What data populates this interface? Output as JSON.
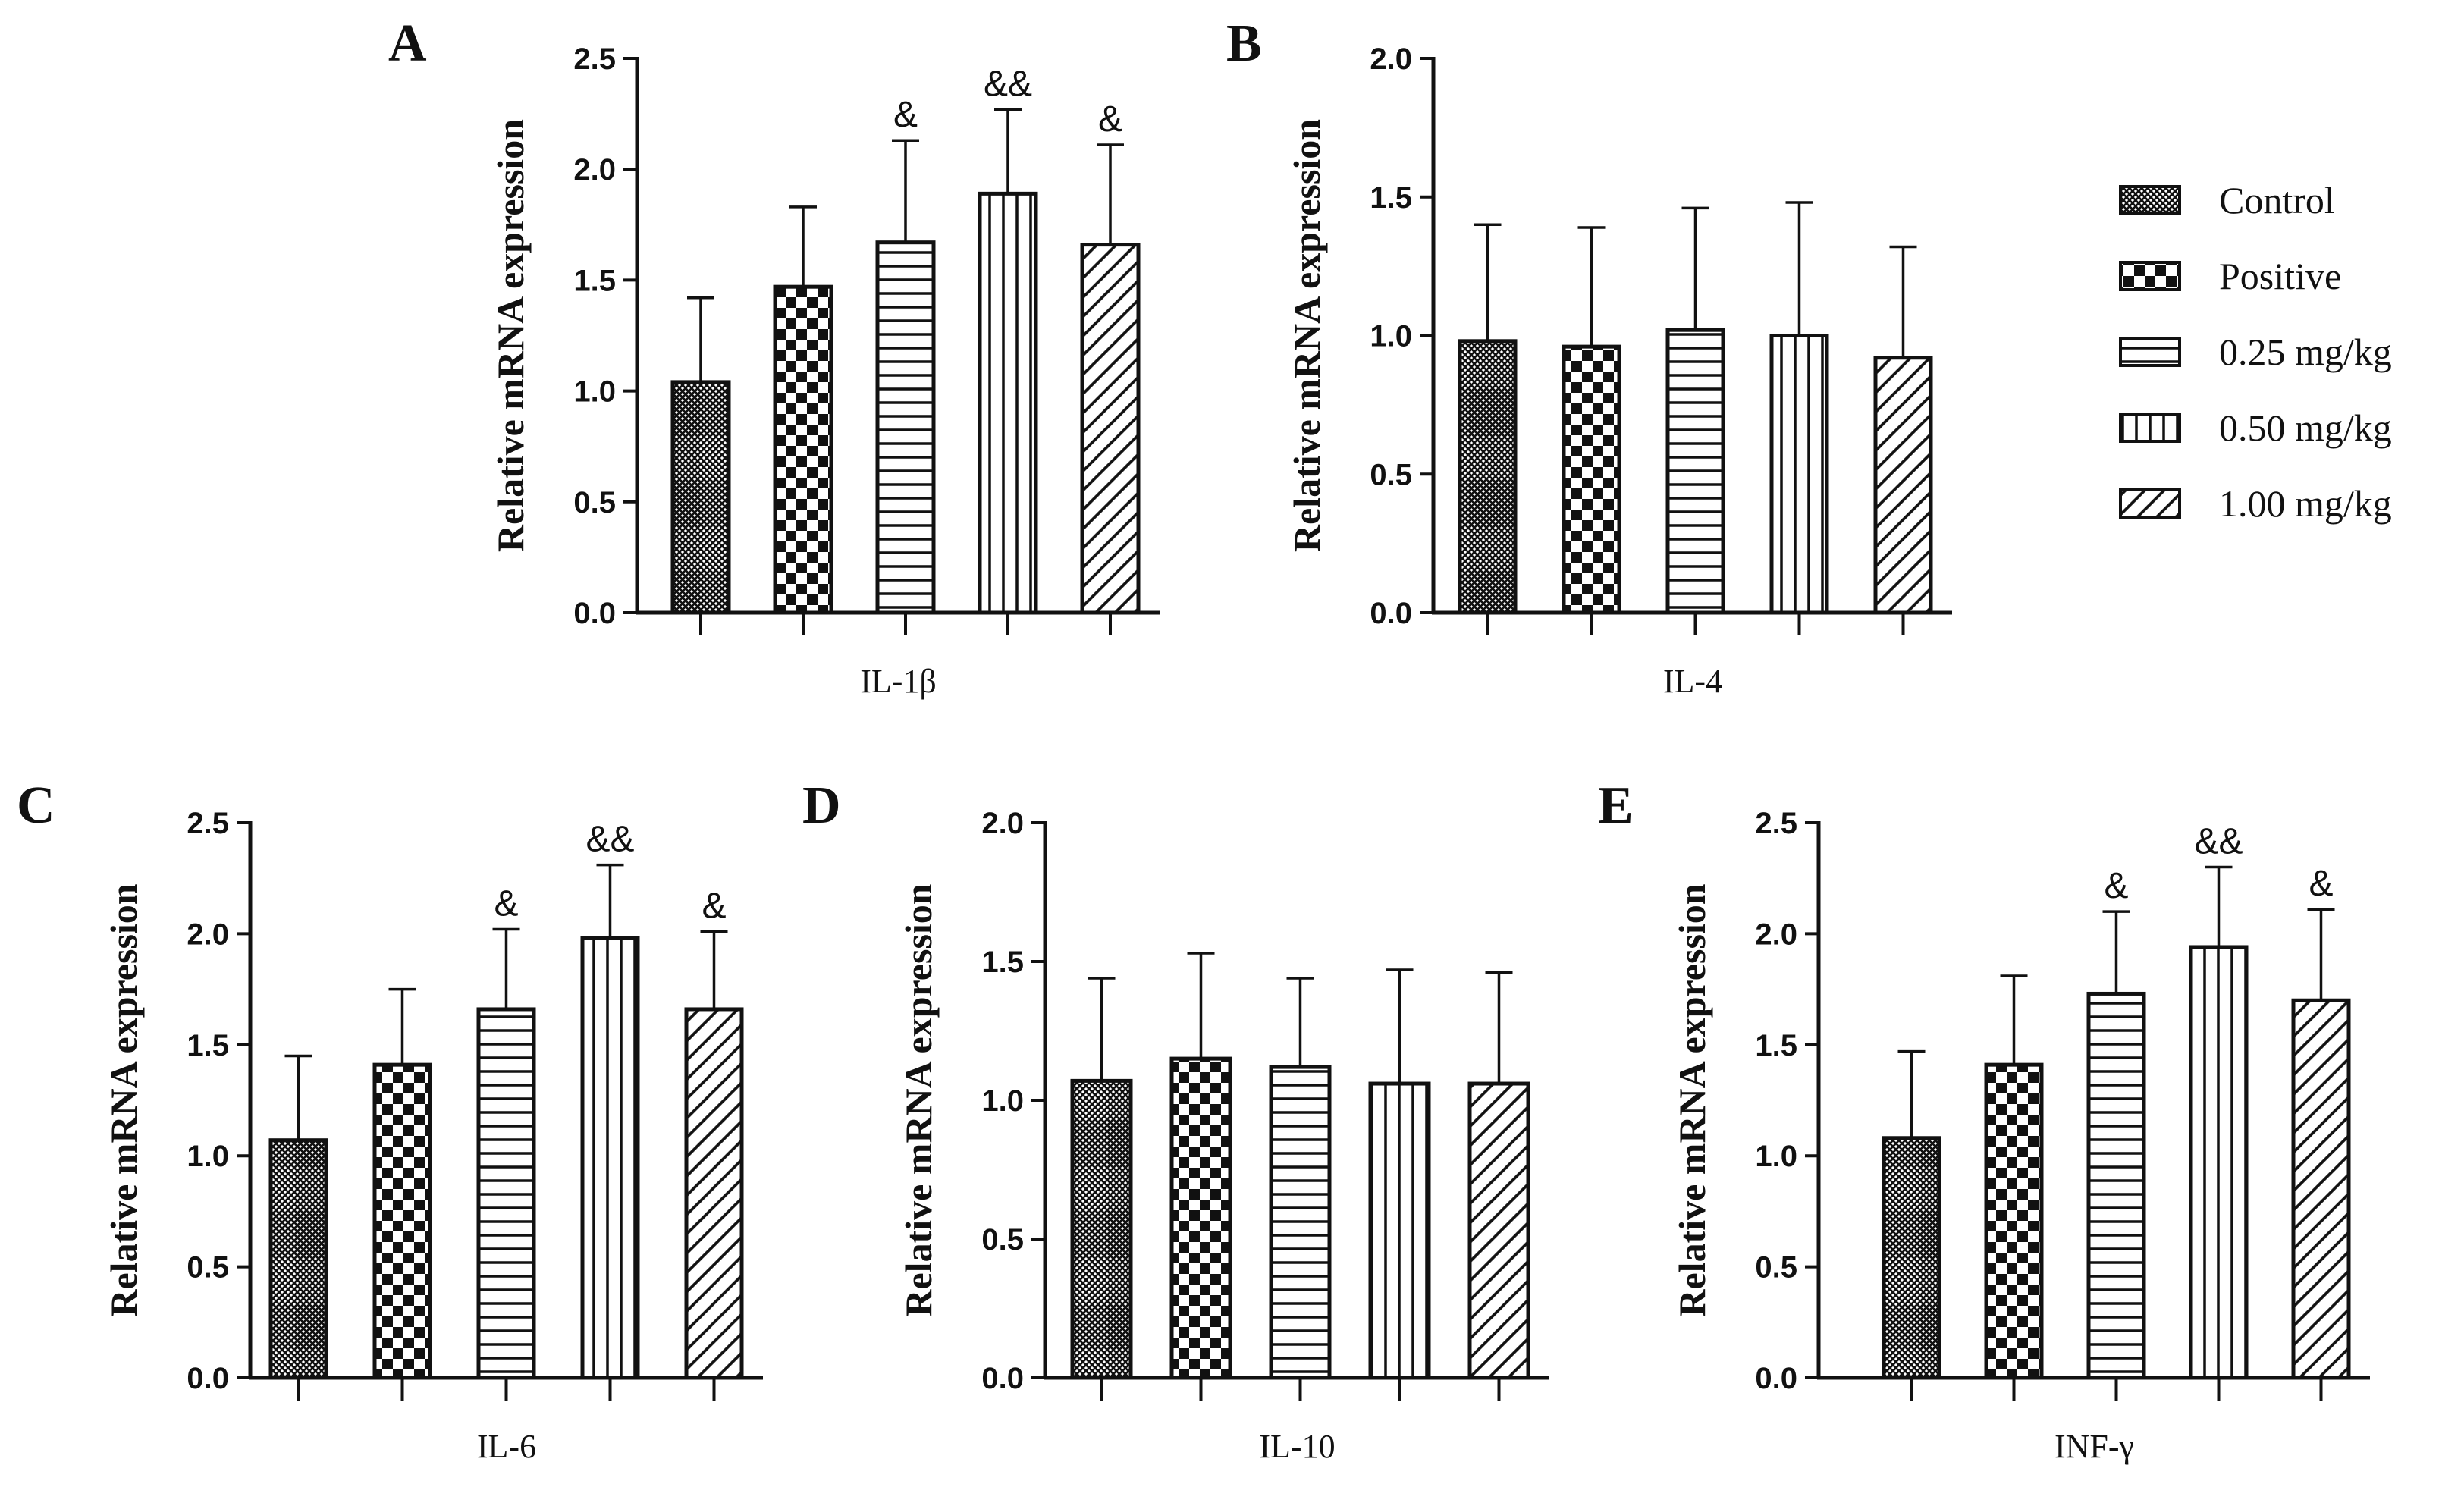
{
  "figure": {
    "legend": [
      {
        "label": "Control",
        "pattern": "crosshatch"
      },
      {
        "label": "Positive",
        "pattern": "checker"
      },
      {
        "label": "0.25 mg/kg",
        "pattern": "horizontal"
      },
      {
        "label": "0.50 mg/kg",
        "pattern": "vertical"
      },
      {
        "label": "1.00 mg/kg",
        "pattern": "diagonal"
      }
    ],
    "bar_fill": "#ffffff",
    "stroke_color": "#111111"
  },
  "chart_data": [
    {
      "panel": "A",
      "type": "bar",
      "title": "",
      "xlabel": "IL-1β",
      "ylabel": "Relative mRNA expression",
      "ylim": [
        0,
        2.5
      ],
      "ticks": [
        "0.0",
        "0.5",
        "1.0",
        "1.5",
        "2.0",
        "2.5"
      ],
      "categories": [
        "Control",
        "Positive",
        "0.25 mg/kg",
        "0.50 mg/kg",
        "1.00 mg/kg"
      ],
      "values": [
        1.04,
        1.47,
        1.67,
        1.89,
        1.66
      ],
      "errors": [
        0.38,
        0.36,
        0.46,
        0.38,
        0.45
      ],
      "annotations": [
        "",
        "",
        "&",
        "&&",
        "&"
      ]
    },
    {
      "panel": "B",
      "type": "bar",
      "title": "",
      "xlabel": "IL-4",
      "ylabel": "Relative mRNA expression",
      "ylim": [
        0,
        2.0
      ],
      "ticks": [
        "0.0",
        "0.5",
        "1.0",
        "1.5",
        "2.0"
      ],
      "categories": [
        "Control",
        "Positive",
        "0.25 mg/kg",
        "0.50 mg/kg",
        "1.00 mg/kg"
      ],
      "values": [
        0.98,
        0.96,
        1.02,
        1.0,
        0.92
      ],
      "errors": [
        0.42,
        0.43,
        0.44,
        0.48,
        0.4
      ],
      "annotations": [
        "",
        "",
        "",
        "",
        ""
      ]
    },
    {
      "panel": "C",
      "type": "bar",
      "title": "",
      "xlabel": "IL-6",
      "ylabel": "Relative mRNA expression",
      "ylim": [
        0,
        2.5
      ],
      "ticks": [
        "0.0",
        "0.5",
        "1.0",
        "1.5",
        "2.0",
        "2.5"
      ],
      "categories": [
        "Control",
        "Positive",
        "0.25 mg/kg",
        "0.50 mg/kg",
        "1.00 mg/kg"
      ],
      "values": [
        1.07,
        1.41,
        1.66,
        1.98,
        1.66
      ],
      "errors": [
        0.38,
        0.34,
        0.36,
        0.33,
        0.35
      ],
      "annotations": [
        "",
        "",
        "&",
        "&&",
        "&"
      ]
    },
    {
      "panel": "D",
      "type": "bar",
      "title": "",
      "xlabel": "IL-10",
      "ylabel": "Relative mRNA expression",
      "ylim": [
        0,
        2.0
      ],
      "ticks": [
        "0.0",
        "0.5",
        "1.0",
        "1.5",
        "2.0"
      ],
      "categories": [
        "Control",
        "Positive",
        "0.25 mg/kg",
        "0.50 mg/kg",
        "1.00 mg/kg"
      ],
      "values": [
        1.07,
        1.15,
        1.12,
        1.06,
        1.06
      ],
      "errors": [
        0.37,
        0.38,
        0.32,
        0.41,
        0.4
      ],
      "annotations": [
        "",
        "",
        "",
        "",
        ""
      ]
    },
    {
      "panel": "E",
      "type": "bar",
      "title": "",
      "xlabel": "INF-γ",
      "ylabel": "Relative mRNA expression",
      "ylim": [
        0,
        2.5
      ],
      "ticks": [
        "0.0",
        "0.5",
        "1.0",
        "1.5",
        "2.0",
        "2.5"
      ],
      "categories": [
        "Control",
        "Positive",
        "0.25 mg/kg",
        "0.50 mg/kg",
        "1.00 mg/kg"
      ],
      "values": [
        1.08,
        1.41,
        1.73,
        1.94,
        1.7
      ],
      "errors": [
        0.39,
        0.4,
        0.37,
        0.36,
        0.41
      ],
      "annotations": [
        "",
        "",
        "&",
        "&&",
        "&"
      ]
    }
  ]
}
